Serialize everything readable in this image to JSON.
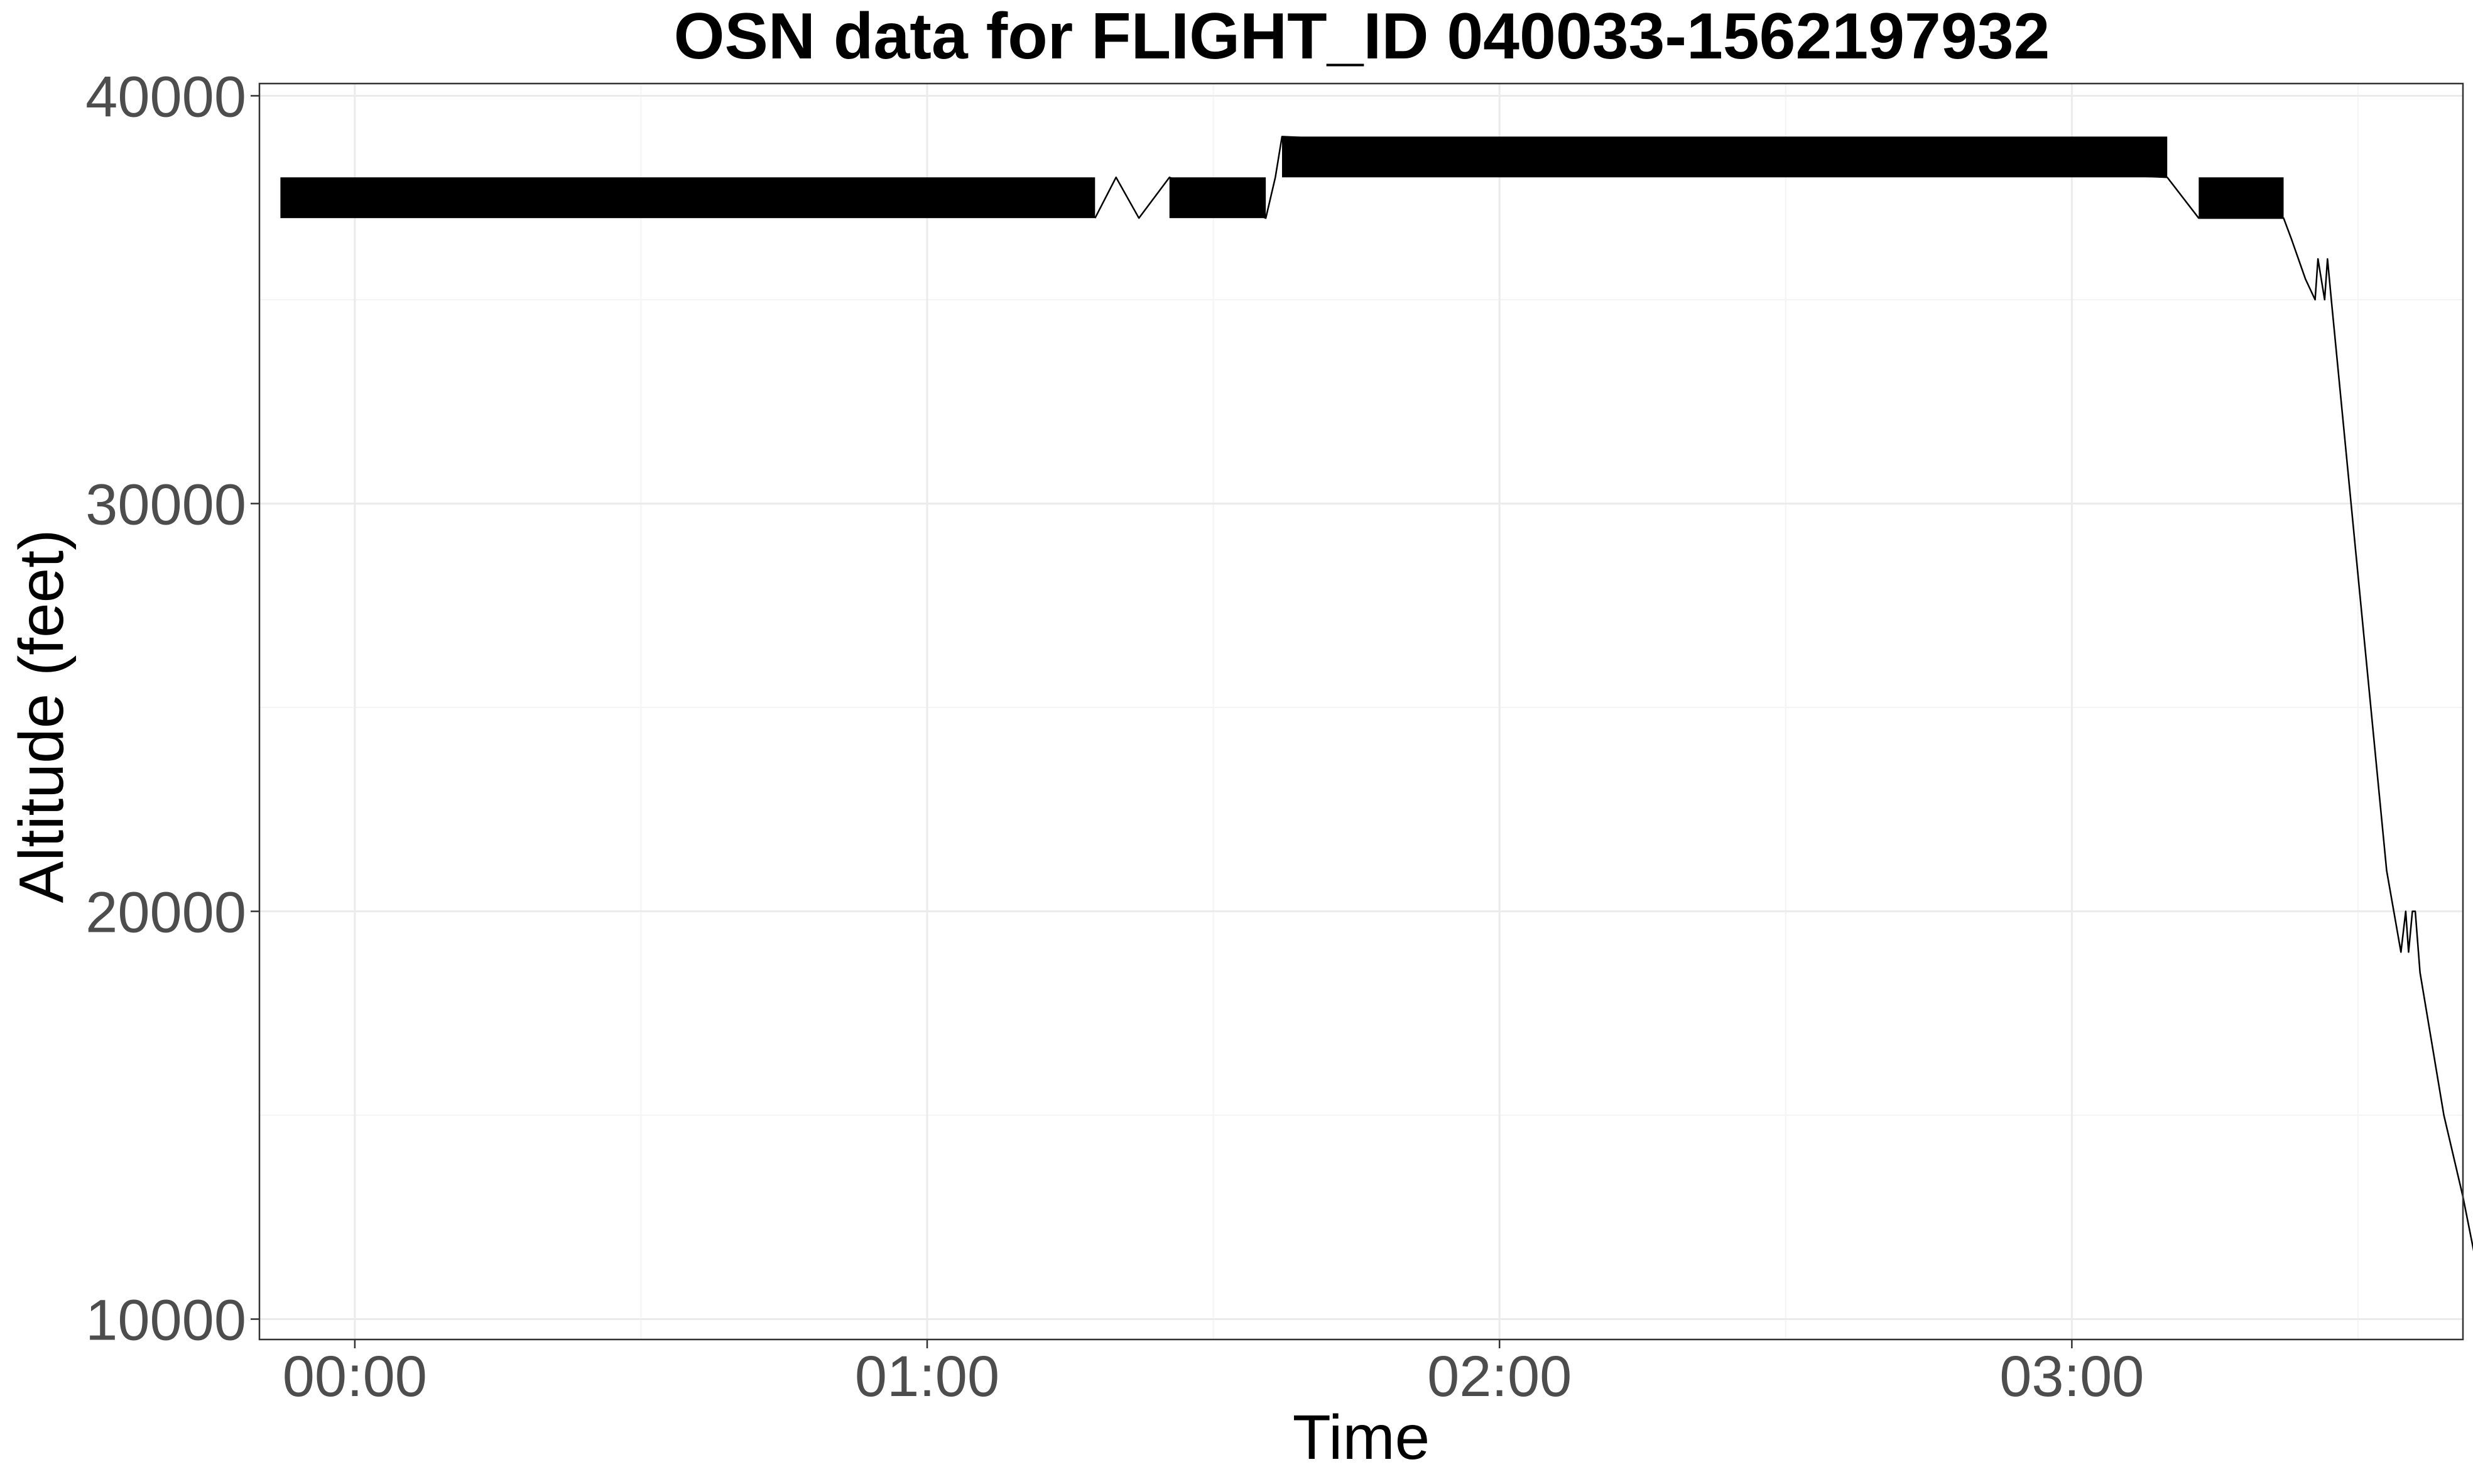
{
  "chart_data": {
    "type": "line",
    "title": "OSN data for FLIGHT_ID 040033-1562197932",
    "xlabel": "Time",
    "ylabel": "Altitude (feet)",
    "x_unit": "minutes",
    "xlim": [
      -10,
      221
    ],
    "ylim": [
      9500,
      40300
    ],
    "x_ticks": [
      {
        "label": "00:00",
        "minutes": 0
      },
      {
        "label": "01:00",
        "minutes": 60
      },
      {
        "label": "02:00",
        "minutes": 120
      },
      {
        "label": "03:00",
        "minutes": 180
      }
    ],
    "y_ticks": [
      {
        "label": "40000",
        "value": 40000
      },
      {
        "label": "30000",
        "value": 30000
      },
      {
        "label": "20000",
        "value": 20000
      },
      {
        "label": "10000",
        "value": 10000
      }
    ],
    "grid": true,
    "legend": "none",
    "oscillating_segments": [
      {
        "x_start": -7.8,
        "x_end": 77.6,
        "y_low": 37000,
        "y_high": 38000
      },
      {
        "x_start": 85.4,
        "x_end": 95.5,
        "y_low": 37000,
        "y_high": 38000
      },
      {
        "x_start": 97.2,
        "x_end": 190.0,
        "y_low": 38000,
        "y_high": 39000
      },
      {
        "x_start": 193.3,
        "x_end": 202.2,
        "y_low": 37000,
        "y_high": 38000
      }
    ],
    "series": [
      {
        "x": [
          77.6,
          79.8,
          82.2,
          85.4,
          95.5,
          96.5,
          97.2,
          190.0,
          193.3,
          202.2,
          203.0,
          204.5,
          205.5,
          205.8,
          206.5,
          206.8,
          207.2,
          213.0,
          214.5,
          215.0,
          215.3,
          215.7,
          216.0,
          216.5,
          219.0,
          221.0,
          222.7
        ],
        "y": [
          37000,
          38000,
          37000,
          38000,
          37000,
          38000,
          39000,
          38000,
          37000,
          37000,
          36500,
          35500,
          35000,
          36000,
          35000,
          36000,
          35000,
          21000,
          19000,
          20000,
          19000,
          20000,
          20000,
          18500,
          15000,
          13000,
          11000
        ]
      }
    ]
  }
}
